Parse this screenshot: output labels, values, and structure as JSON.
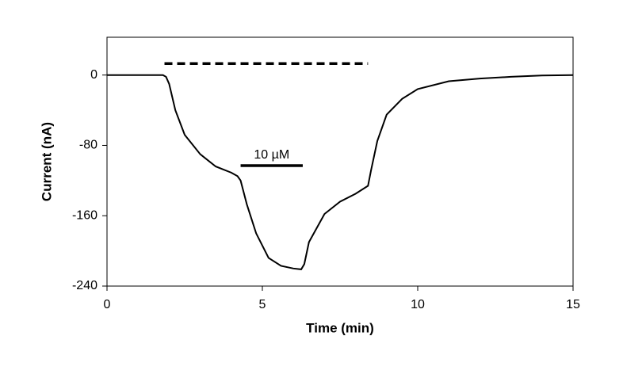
{
  "chart_data": {
    "type": "line",
    "x_label": "Time (min)",
    "y_label": "Current (nA)",
    "x": [
      0,
      1,
      1.8,
      1.9,
      2.0,
      2.2,
      2.5,
      3.0,
      3.5,
      4.0,
      4.2,
      4.3,
      4.5,
      4.8,
      5.2,
      5.6,
      6.0,
      6.25,
      6.35,
      6.5,
      7.0,
      7.5,
      8.0,
      8.4,
      8.5,
      8.7,
      9.0,
      9.5,
      10,
      11,
      12,
      13,
      14,
      15
    ],
    "values": [
      0,
      0,
      0,
      -2,
      -10,
      -40,
      -68,
      -90,
      -104,
      -111,
      -115,
      -120,
      -147,
      -180,
      -208,
      -217,
      -220,
      -221,
      -215,
      -190,
      -158,
      -144,
      -135,
      -126,
      -108,
      -75,
      -45,
      -27,
      -16,
      -7,
      -4,
      -2,
      -0.5,
      0
    ],
    "color": "#000000",
    "bars": [
      {
        "x": [
          1.85,
          8.4
        ],
        "y": 13,
        "style": "dashed"
      },
      {
        "x": [
          4.3,
          6.3
        ],
        "y": -103,
        "style": "solid"
      }
    ],
    "annotations": [
      {
        "text": "10 µM",
        "x": 5.3,
        "y": -91
      }
    ],
    "xlim": [
      0,
      15
    ],
    "ylim": [
      -240,
      43
    ],
    "xticks": [
      0,
      5,
      10,
      15
    ],
    "yticks": [
      -240,
      -160,
      -80,
      0
    ],
    "grid": false
  }
}
